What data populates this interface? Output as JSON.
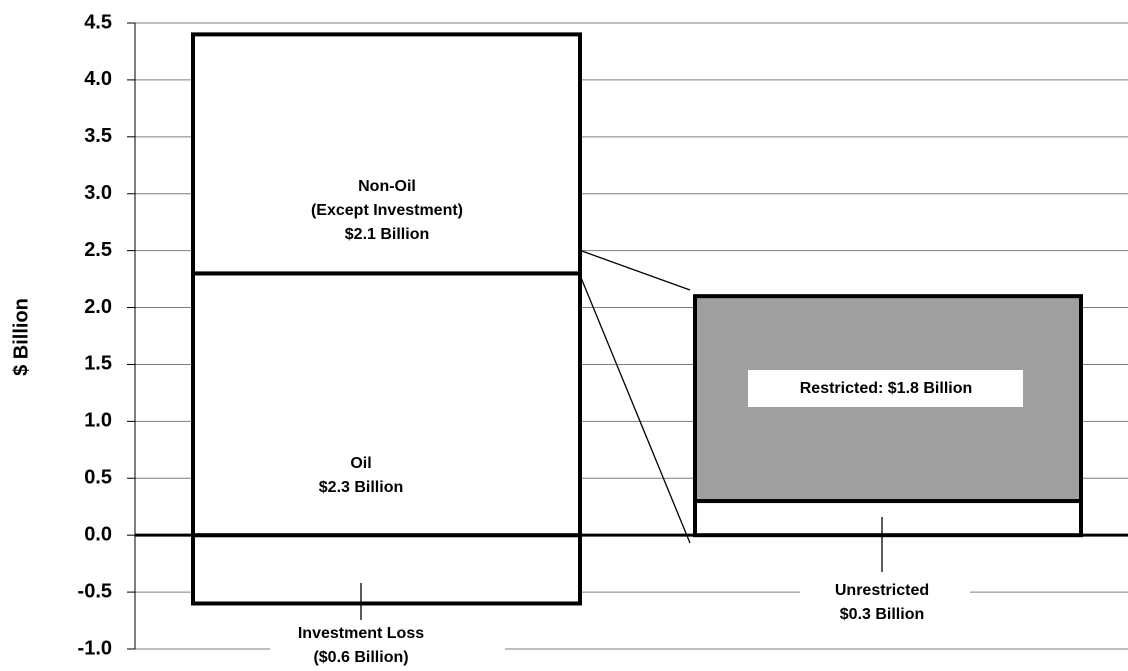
{
  "chart_data": {
    "type": "bar",
    "stacked": true,
    "y_label": "$ Billion",
    "categories": [
      null,
      null
    ],
    "series": [
      {
        "name": "Investment Loss",
        "color": "#ffffff",
        "values": [
          -0.6,
          null
        ],
        "value_labels": [
          "($0.6 Billion)",
          null
        ]
      },
      {
        "name": "Oil",
        "color": "#ffffff",
        "values": [
          2.3,
          null
        ],
        "value_labels": [
          "$2.3 Billion",
          null
        ]
      },
      {
        "name": "Non-Oil",
        "qualifier": "(Except Investment)",
        "color": "#ffffff",
        "values": [
          2.1,
          null
        ],
        "value_labels": [
          "$2.1 Billion",
          null
        ]
      },
      {
        "name": "Unrestricted",
        "color": "#ffffff",
        "values": [
          null,
          0.3
        ],
        "value_labels": [
          null,
          "$0.3 Billion"
        ]
      },
      {
        "name": "Restricted:",
        "color": "#a0a0a0",
        "values": [
          null,
          1.8
        ],
        "value_labels": [
          null,
          "$1.8 Billion"
        ]
      }
    ],
    "ylim": [
      -1.0,
      4.5
    ],
    "yticks": [
      {
        "value": -1.0,
        "label": "-1.0"
      },
      -0.5,
      {
        "value": 0.0,
        "label": "0.0"
      },
      0.5,
      {
        "value": 1.0,
        "label": "1.0"
      },
      1.5,
      {
        "value": 2.0,
        "label": "2.0"
      },
      2.5,
      {
        "value": 3.0,
        "label": "3.0"
      },
      3.5,
      {
        "value": 4.0,
        "label": "4.0"
      },
      4.5
    ],
    "grid": true
  }
}
